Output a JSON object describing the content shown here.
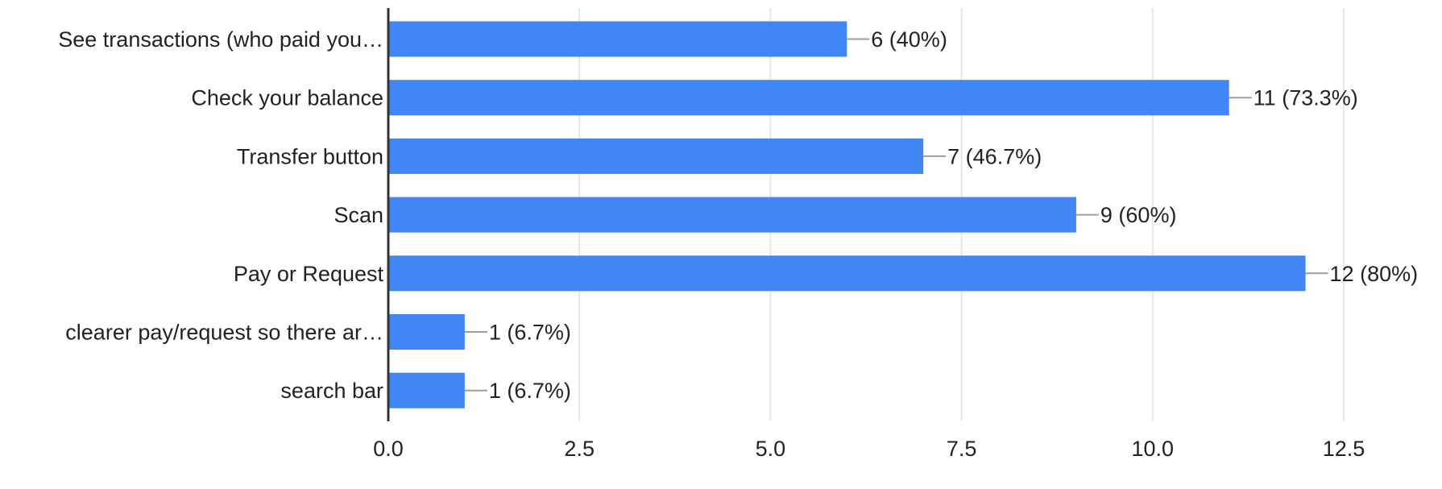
{
  "chart_data": {
    "type": "bar",
    "orientation": "horizontal",
    "categories": [
      "See transactions (who paid you…",
      "Check your balance",
      "Transfer button",
      "Scan",
      "Pay or Request",
      "clearer pay/request so there ar…",
      "search bar"
    ],
    "values": [
      6,
      11,
      7,
      9,
      12,
      1,
      1
    ],
    "data_labels": [
      "6 (40%)",
      "11 (73.3%)",
      "7 (46.7%)",
      "9 (60%)",
      "12 (80%)",
      "1 (6.7%)",
      "1 (6.7%)"
    ],
    "xlim": [
      0,
      12.5
    ],
    "x_ticks": [
      0,
      2.5,
      5,
      7.5,
      10,
      12.5
    ],
    "x_tick_labels": [
      "0.0",
      "2.5",
      "5.0",
      "7.5",
      "10.0",
      "12.5"
    ],
    "grid": true,
    "legend": "none",
    "colors": {
      "bar": "#4285F4",
      "grid": "#E6E6E6",
      "axis": "#333333",
      "leader": "#9E9E9E",
      "text": "#222222"
    }
  }
}
